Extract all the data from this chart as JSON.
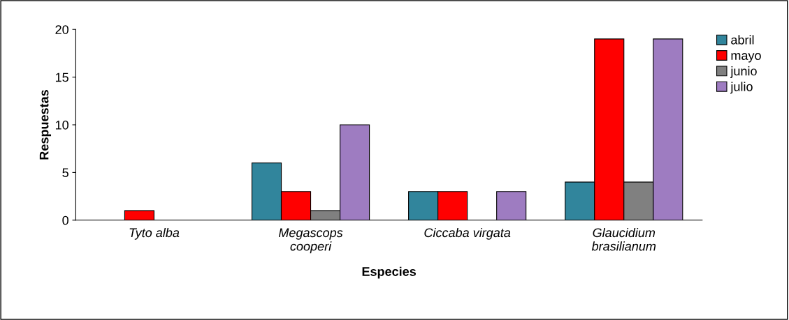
{
  "chart_data": {
    "type": "bar",
    "xlabel": "Especies",
    "ylabel": "Respuestas",
    "categories": [
      "Tyto alba",
      "Megascops\ncooperi",
      "Ciccaba virgata",
      "Glaucidium\nbrasilianum"
    ],
    "series": [
      {
        "name": "abril",
        "color": "#31859c",
        "values": [
          null,
          6,
          3,
          4
        ]
      },
      {
        "name": "mayo",
        "color": "#ff0000",
        "values": [
          1,
          3,
          3,
          19
        ]
      },
      {
        "name": "junio",
        "color": "#808080",
        "values": [
          null,
          1,
          null,
          4
        ]
      },
      {
        "name": "julio",
        "color": "#9e7cc1",
        "values": [
          null,
          10,
          3,
          19
        ]
      }
    ],
    "ylim": [
      0,
      20
    ],
    "yticks": [
      0,
      5,
      10,
      15,
      20
    ],
    "grid": false,
    "legend": "top right"
  }
}
